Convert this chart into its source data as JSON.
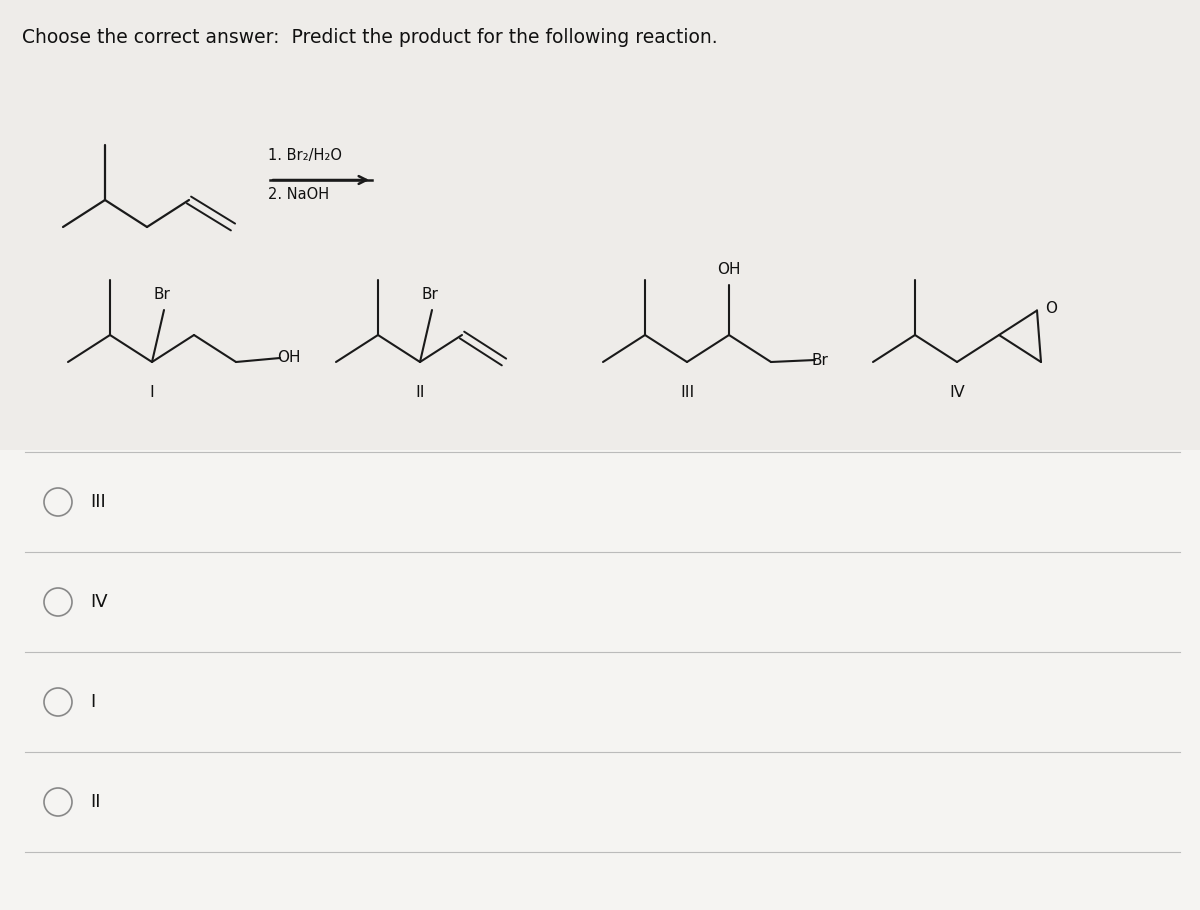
{
  "title": "Choose the correct answer:  Predict the product for the following reaction.",
  "reaction_line1": "1. Br₂/H₂O",
  "reaction_line2": "2. NaOH",
  "options": [
    "III",
    "IV",
    "I",
    "II"
  ],
  "bg_color": "#eeece9",
  "answer_area_color": "#f5f4f2",
  "line_color": "#1a1a1a",
  "text_color": "#111111",
  "option_divider_color": "#cccccc",
  "circle_color": "#888888"
}
